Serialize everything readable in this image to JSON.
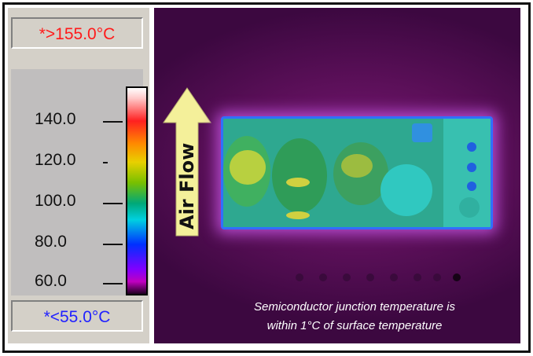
{
  "scale": {
    "max_label": "*>155.0°C",
    "min_label": "*<55.0°C",
    "ticks": [
      "140.0",
      "120.0",
      "100.0",
      "80.0",
      "60.0"
    ]
  },
  "annotation": {
    "arrow_label": "Air Flow",
    "caption_line1": "Semiconductor junction temperature is",
    "caption_line2": "within 1°C of surface temperature"
  },
  "colors": {
    "max_text": "#ff1a1a",
    "min_text": "#2121ff",
    "arrow_fill": "#f4f09a",
    "background": "#5a0f58"
  }
}
